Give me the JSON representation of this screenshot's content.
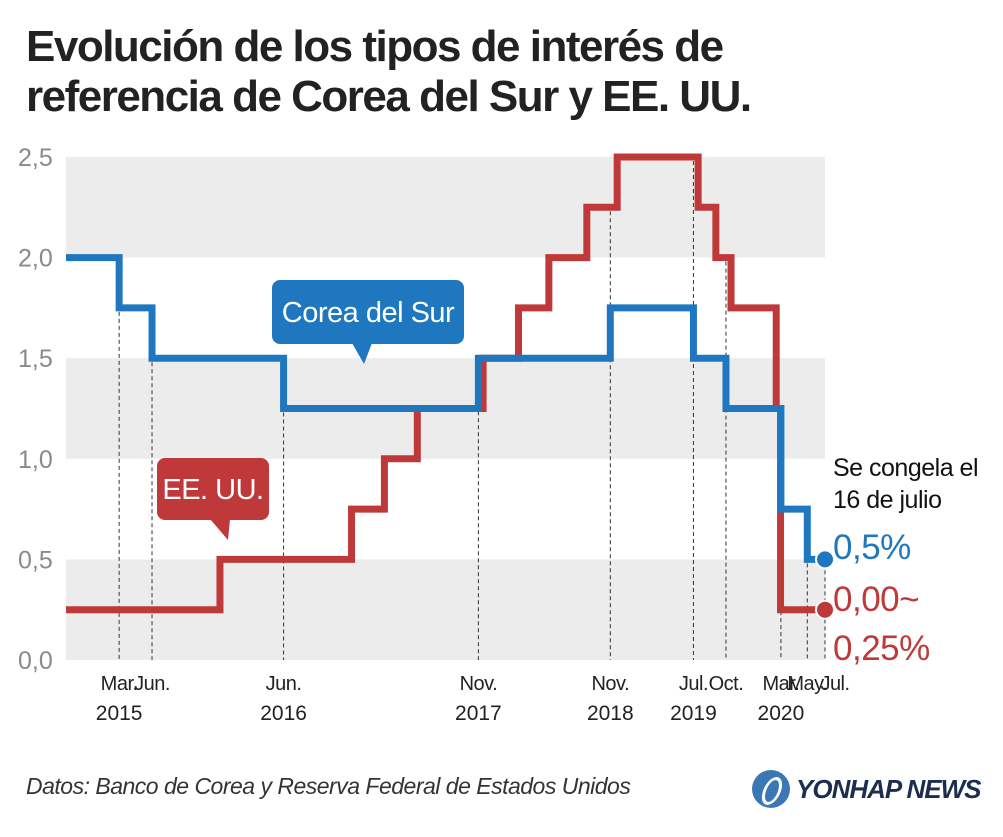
{
  "title_lines": [
    "Evolución de los tipos de interés de",
    "referencia de Corea del Sur y EE. UU."
  ],
  "source": "Datos: Banco de Corea y Reserva Federal de Estados Unidos",
  "logo": "YONHAP NEWS",
  "colors": {
    "korea": "#1f78bf",
    "us": "#c0393a",
    "band": "#ececec",
    "axis_text": "#8a8a8a"
  },
  "chart_data": {
    "type": "line",
    "step": true,
    "ylim": [
      0,
      2.5
    ],
    "yticks": [
      "0,0",
      "0,5",
      "1,0",
      "1,5",
      "2,0",
      "2,5"
    ],
    "xlim": [
      "2014-10-16",
      "2020-07-16"
    ],
    "xticks": [
      {
        "date": "2015-03-12",
        "month": "Mar.",
        "year": "2015"
      },
      {
        "date": "2015-06-11",
        "month": "Jun.",
        "year": ""
      },
      {
        "date": "2016-06-09",
        "month": "Jun.",
        "year": "2016"
      },
      {
        "date": "2017-11-30",
        "month": "Nov.",
        "year": "2017"
      },
      {
        "date": "2018-11-30",
        "month": "Nov.",
        "year": "2018"
      },
      {
        "date": "2019-07-18",
        "month": "Jul.",
        "year": "2019"
      },
      {
        "date": "2019-10-16",
        "month": "Oct.",
        "year": ""
      },
      {
        "date": "2020-03-16",
        "month": "Mar.",
        "year": "2020"
      },
      {
        "date": "2020-05-28",
        "month": "May.",
        "year": ""
      },
      {
        "date": "2020-07-16",
        "month": "Jul.",
        "year": ""
      }
    ],
    "series": [
      {
        "name": "Corea del Sur",
        "color": "#1f78bf",
        "steps": [
          {
            "date": "2014-10-16",
            "value": 2.0
          },
          {
            "date": "2015-03-12",
            "value": 1.75
          },
          {
            "date": "2015-06-11",
            "value": 1.5
          },
          {
            "date": "2016-06-09",
            "value": 1.25
          },
          {
            "date": "2017-11-30",
            "value": 1.5
          },
          {
            "date": "2018-11-30",
            "value": 1.75
          },
          {
            "date": "2019-07-18",
            "value": 1.5
          },
          {
            "date": "2019-10-16",
            "value": 1.25
          },
          {
            "date": "2020-03-16",
            "value": 0.75
          },
          {
            "date": "2020-05-28",
            "value": 0.5
          }
        ],
        "end_label": "0,5%"
      },
      {
        "name": "EE. UU.",
        "color": "#c0393a",
        "steps": [
          {
            "date": "2014-10-16",
            "value": 0.25
          },
          {
            "date": "2015-12-16",
            "value": 0.5
          },
          {
            "date": "2016-12-14",
            "value": 0.75
          },
          {
            "date": "2017-03-15",
            "value": 1.0
          },
          {
            "date": "2017-06-14",
            "value": 1.25
          },
          {
            "date": "2017-12-13",
            "value": 1.5
          },
          {
            "date": "2018-03-21",
            "value": 1.75
          },
          {
            "date": "2018-06-13",
            "value": 2.0
          },
          {
            "date": "2018-09-26",
            "value": 2.25
          },
          {
            "date": "2018-12-19",
            "value": 2.5
          },
          {
            "date": "2019-07-31",
            "value": 2.25
          },
          {
            "date": "2019-09-18",
            "value": 2.0
          },
          {
            "date": "2019-10-30",
            "value": 1.75
          },
          {
            "date": "2020-03-03",
            "value": 1.25
          },
          {
            "date": "2020-03-15",
            "value": 0.25
          }
        ],
        "end_label_lines": [
          "0,00~",
          "0,25%"
        ]
      }
    ],
    "annotation_lines": [
      "Se congela el",
      "16 de julio"
    ],
    "bands": true
  }
}
